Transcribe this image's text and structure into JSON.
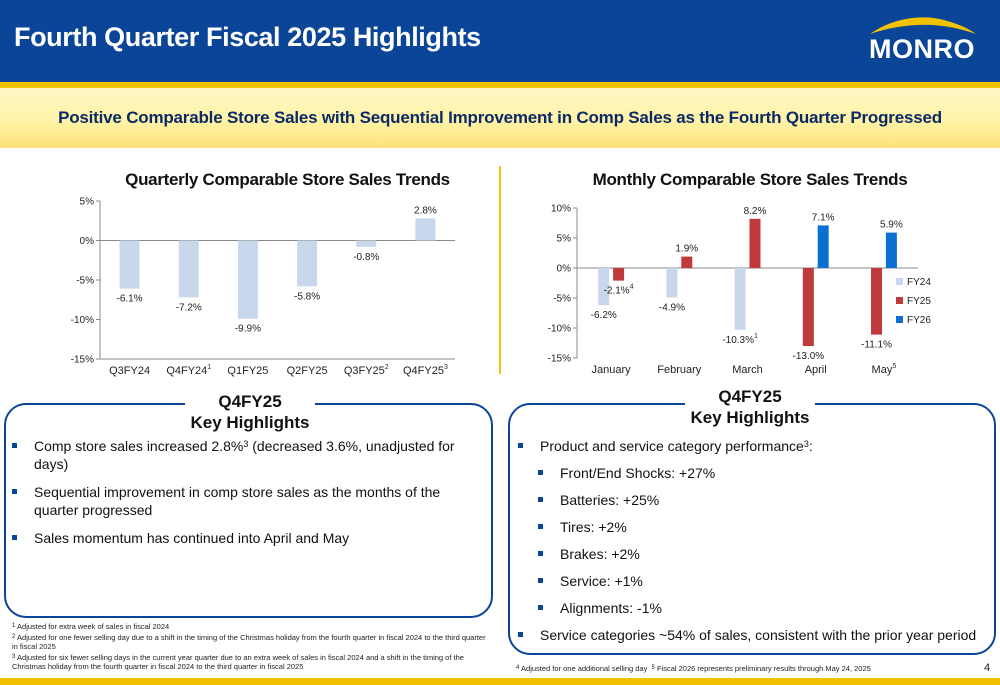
{
  "header": {
    "title": "Fourth Quarter Fiscal 2025 Highlights",
    "logo_text": "MONRO"
  },
  "subtitle": "Positive Comparable Store Sales with Sequential Improvement in Comp Sales as the Fourth Quarter Progressed",
  "colors": {
    "navy": "#0a4598",
    "gold": "#f2c200",
    "fy24": "#c9d7ec",
    "fy25": "#c0393b",
    "fy26": "#0a6fd1"
  },
  "chart_data": [
    {
      "type": "bar",
      "title": "Quarterly Comparable Store Sales Trends",
      "categories": [
        "Q3FY24",
        "Q4FY24",
        "Q1FY25",
        "Q2FY25",
        "Q3FY25",
        "Q4FY25"
      ],
      "category_sups": [
        "",
        "1",
        "",
        "",
        "2",
        "3"
      ],
      "values": [
        -6.1,
        -7.2,
        -9.9,
        -5.8,
        -0.8,
        2.8
      ],
      "data_labels": [
        "-6.1%",
        "-7.2%",
        "-9.9%",
        "-5.8%",
        "-0.8%",
        "2.8%"
      ],
      "ylim": [
        -15,
        5
      ],
      "yticks": [
        5,
        0,
        -5,
        -10,
        -15
      ],
      "ytick_labels": [
        "5%",
        "0%",
        "-5%",
        "-10%",
        "-15%"
      ],
      "grid": false
    },
    {
      "type": "bar",
      "title": "Monthly Comparable Store Sales Trends",
      "categories": [
        "January",
        "February",
        "March",
        "April",
        "May"
      ],
      "category_sups": [
        "",
        "",
        "",
        "",
        "5"
      ],
      "series": [
        {
          "name": "FY24",
          "values": [
            -6.2,
            -4.9,
            -10.3,
            null,
            null
          ],
          "labels": [
            "-6.2%",
            "-4.9%",
            "-10.3%",
            "",
            ""
          ],
          "sups": [
            "",
            "",
            "1",
            "",
            ""
          ]
        },
        {
          "name": "FY25",
          "values": [
            -2.1,
            1.9,
            8.2,
            -13.0,
            -11.1
          ],
          "labels": [
            "-2.1%",
            "1.9%",
            "8.2%",
            "-13.0%",
            "-11.1%"
          ],
          "sups": [
            "4",
            "",
            "",
            "",
            ""
          ]
        },
        {
          "name": "FY26",
          "values": [
            null,
            null,
            null,
            7.1,
            5.9
          ],
          "labels": [
            "",
            "",
            "",
            "7.1%",
            "5.9%"
          ],
          "sups": [
            "",
            "",
            "",
            "",
            ""
          ]
        }
      ],
      "ylim": [
        -15,
        10
      ],
      "yticks": [
        10,
        5,
        0,
        -5,
        -10,
        -15
      ],
      "ytick_labels": [
        "10%",
        "5%",
        "0%",
        "-5%",
        "-10%",
        "-15%"
      ],
      "legend": "right",
      "grid": false
    }
  ],
  "left_highlights": {
    "title_line1": "Q4FY25",
    "title_line2": "Key Highlights",
    "bullet1_text": "Comp store sales increased 2.8%",
    "bullet1_sup": "3",
    "bullet1_rest": " (decreased 3.6%, unadjusted for days)",
    "bullet2": "Sequential improvement in comp store sales as the months of the quarter progressed",
    "bullet3": "Sales momentum has continued into April and May"
  },
  "right_highlights": {
    "title_line1": "Q4FY25",
    "title_line2": "Key Highlights",
    "intro_text": "Product and service category performance",
    "intro_sup": "3",
    "intro_colon": ":",
    "items": [
      "Front/End Shocks: +27%",
      "Batteries: +25%",
      "Tires: +2%",
      "Brakes: +2%",
      "Service: +1%",
      "Alignments: -1%"
    ],
    "closing": "Service categories ~54% of sales, consistent with the prior year period"
  },
  "footnotes": {
    "fn1_num": "1",
    "fn1": "Adjusted for extra week of sales in fiscal 2024",
    "fn2_num": "2",
    "fn2": "Adjusted for one fewer selling day due to a shift in the timing of the Christmas holiday from the fourth quarter in fiscal 2024 to the third quarter in fiscal 2025",
    "fn3_num": "3",
    "fn3": "Adjusted for six fewer selling days in the current year quarter due to an extra week of sales in fiscal 2024 and a shift in the timing of the Christmas holiday from the fourth quarter in fiscal 2024 to the third quarter in fiscal 2025",
    "fn4_num": "4",
    "fn4": "Adjusted for one additional selling day",
    "fn5_num": "5",
    "fn5": "Fiscal 2026 represents preliminary results through May 24, 2025"
  },
  "page_number": "4"
}
